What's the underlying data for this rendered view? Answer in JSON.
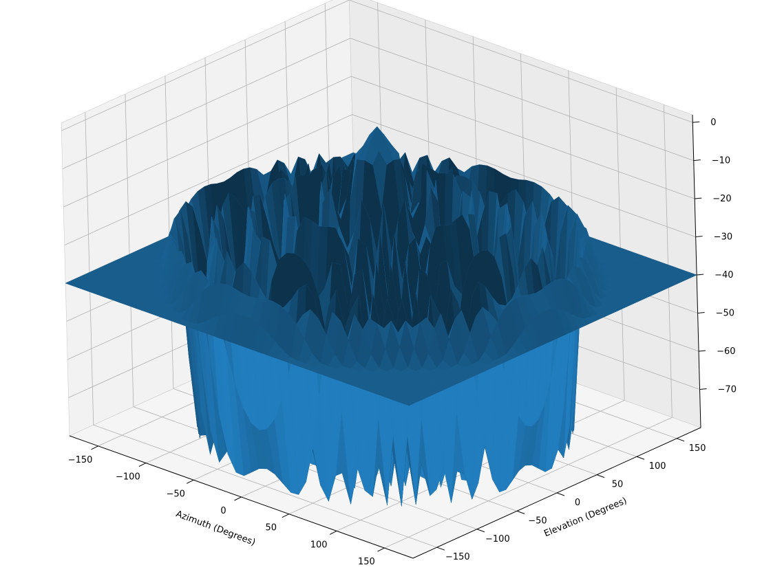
{
  "chart_data": {
    "type": "surface3d",
    "title": "",
    "xlabel": "Azimuth (Degrees)",
    "ylabel": "Elevation (Degrees)",
    "zlabel": "",
    "x_ticks": [
      -150,
      -100,
      -50,
      0,
      50,
      100,
      150
    ],
    "y_ticks": [
      -150,
      -100,
      -50,
      0,
      50,
      100,
      150
    ],
    "z_ticks": [
      0,
      -10,
      -20,
      -30,
      -40,
      -50,
      -60,
      -70
    ],
    "x_tick_labels": [
      "−150",
      "−100",
      "−50",
      "0",
      "50",
      "100",
      "150"
    ],
    "y_tick_labels": [
      "−150",
      "−100",
      "−50",
      "0",
      "50",
      "100",
      "150"
    ],
    "z_tick_labels": [
      "0",
      "−10",
      "−20",
      "−30",
      "−40",
      "−50",
      "−60",
      "−70"
    ],
    "xlim": [
      -180,
      180
    ],
    "ylim": [
      -180,
      180
    ],
    "zlim": [
      -80,
      2
    ],
    "grid": true,
    "surface_color": "#1f77b4",
    "pane_colors": {
      "left": "#f2f2f2",
      "right": "#ebebeb",
      "floor": "#f5f5f5"
    },
    "grid_color": "#b0b0b0",
    "description_of_surface": {
      "peak_db": 0,
      "floor_db": -80,
      "pattern": "radially symmetric sidelobe pattern: main lobe at center, ring sidelobes at increasing radius, deep nulls between rings"
    },
    "surface_profile": {
      "radius_deg": [
        0,
        20,
        32,
        45,
        60,
        75,
        90,
        105,
        120,
        135,
        150,
        165,
        180
      ],
      "level_db": [
        0,
        -8,
        -80,
        -13,
        -80,
        -18,
        -80,
        -22,
        -80,
        -26,
        -80,
        -28,
        -40
      ]
    }
  }
}
